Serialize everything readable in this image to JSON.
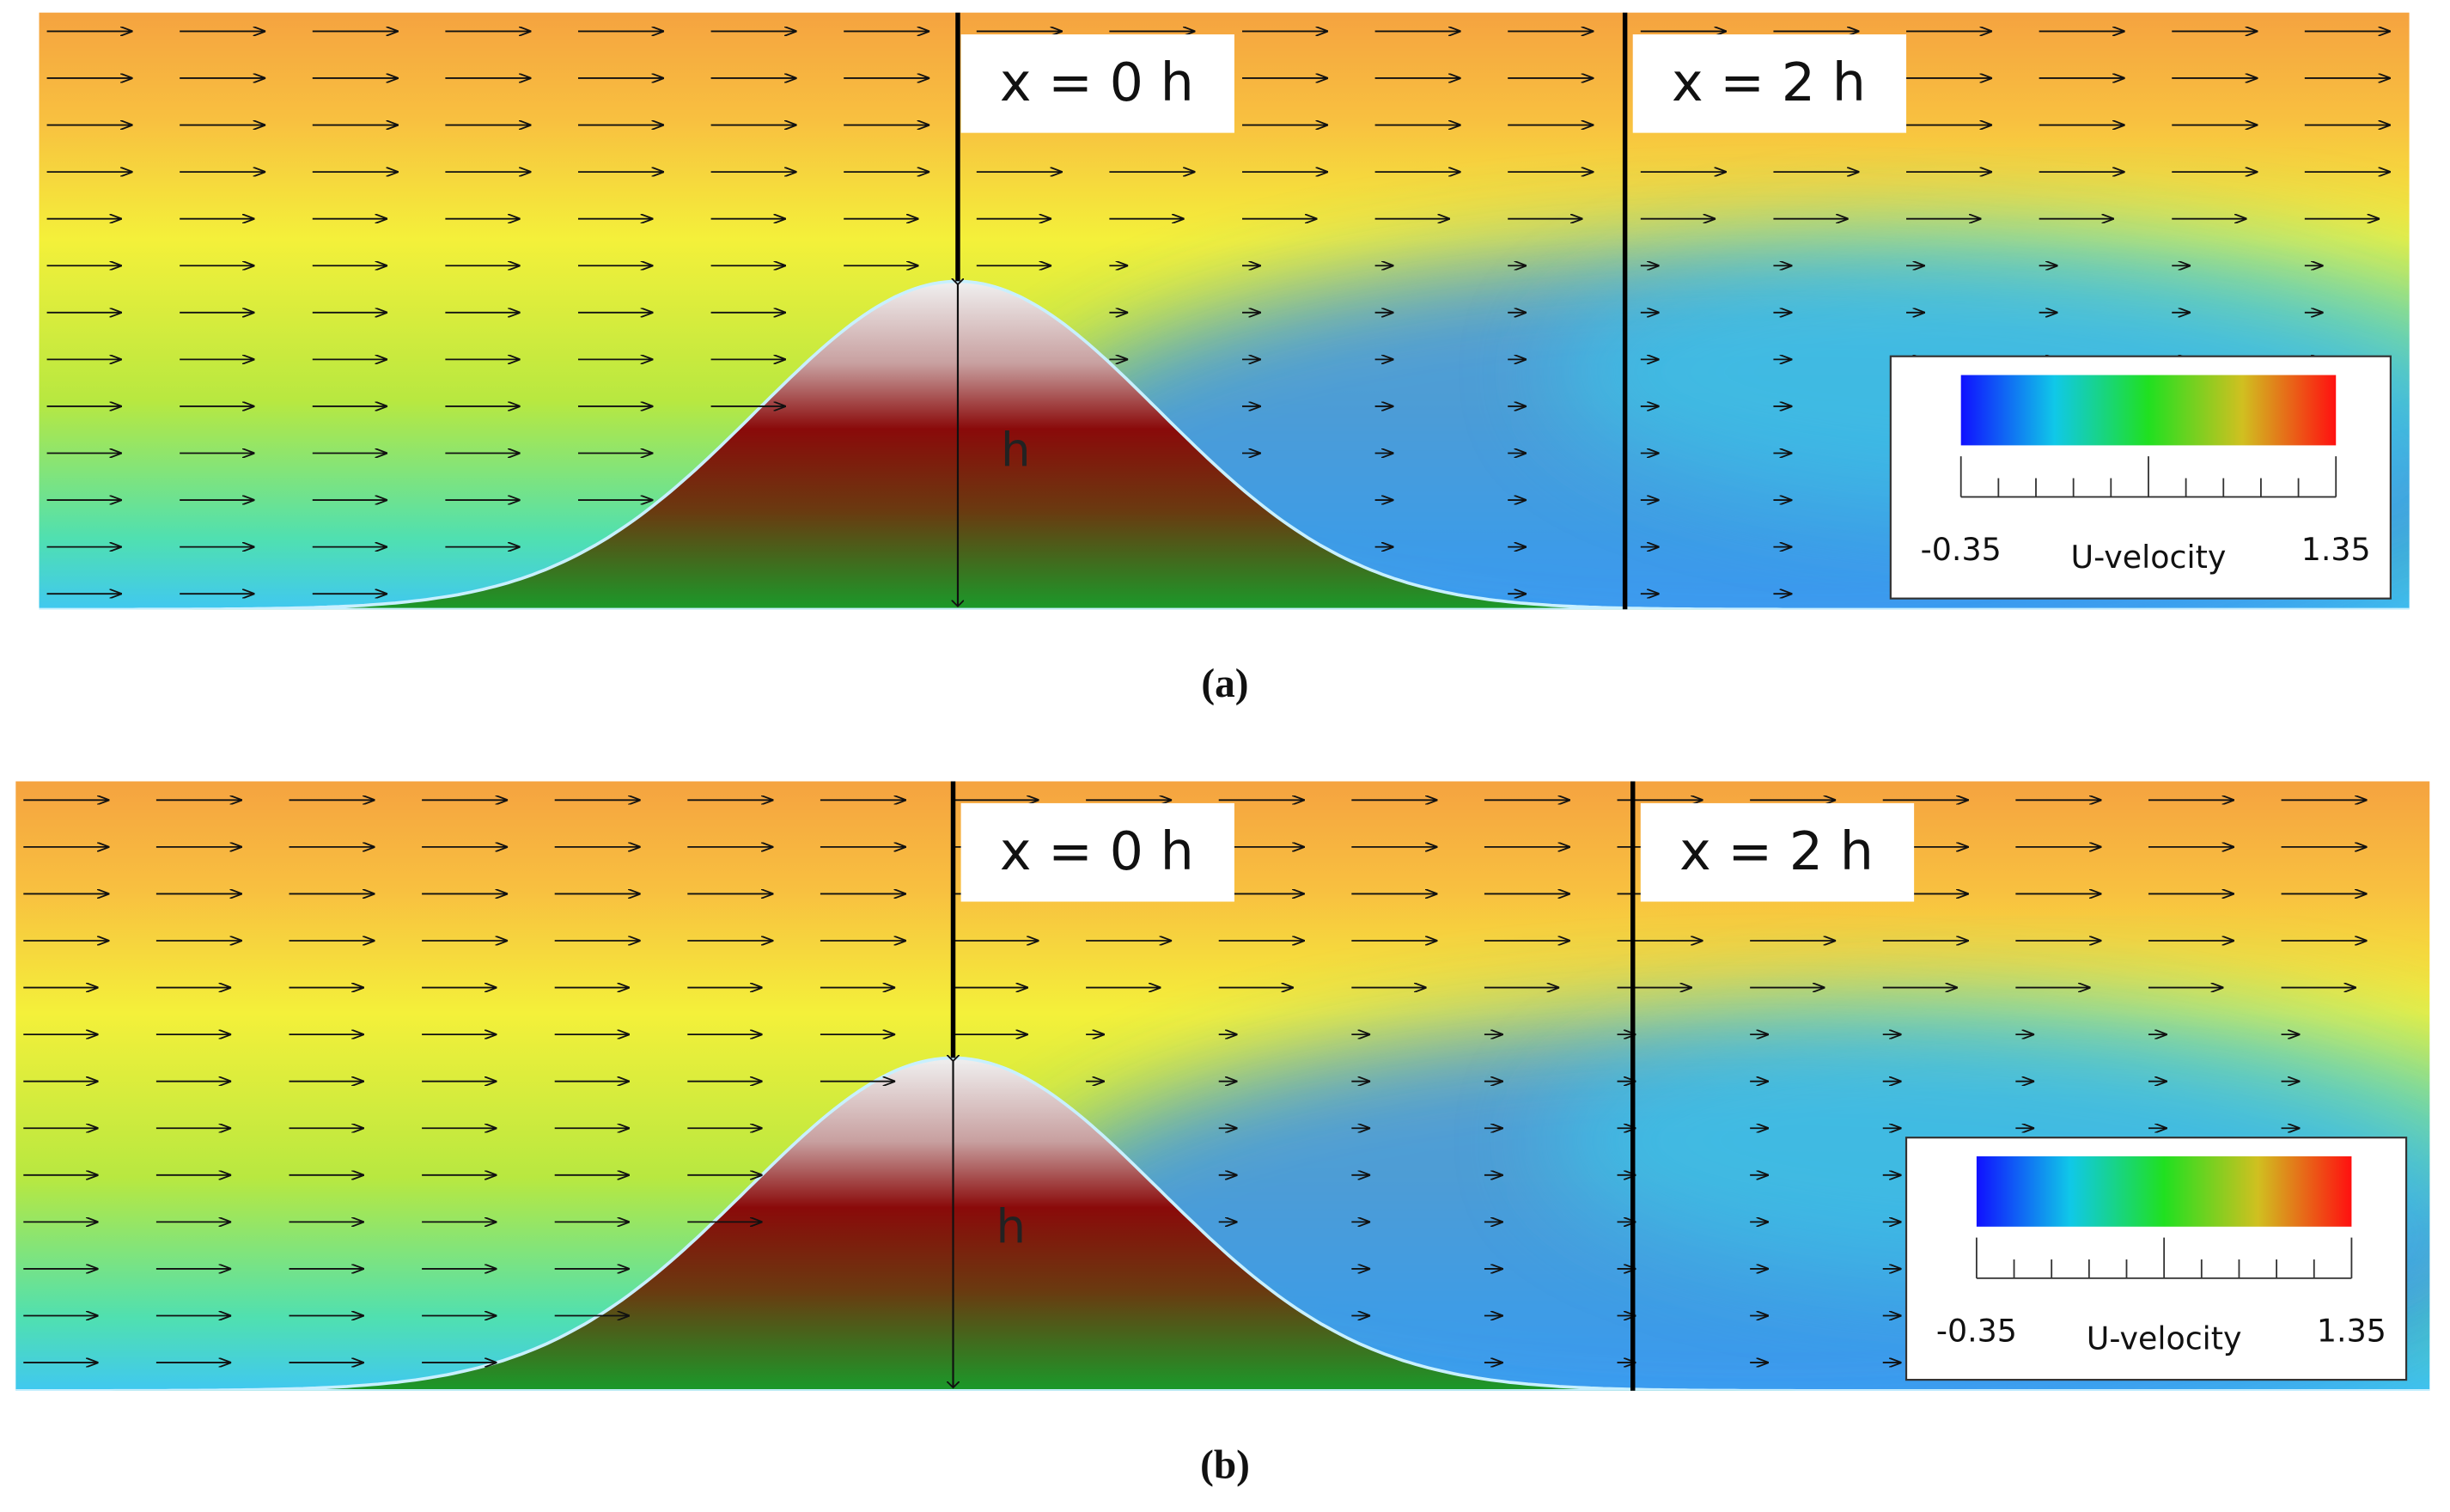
{
  "panels": [
    {
      "labels": [
        "x = 0 h",
        "x = 2 h"
      ],
      "height_label": "h",
      "colorbar": {
        "min": -0.35,
        "max": 1.35,
        "label": "U-velocity"
      },
      "caption": "(a)"
    },
    {
      "labels": [
        "x = 0 h",
        "x = 2 h"
      ],
      "height_label": "h",
      "colorbar": {
        "min": -0.35,
        "max": 1.35,
        "label": "U-velocity"
      },
      "caption": "(b)"
    }
  ]
}
